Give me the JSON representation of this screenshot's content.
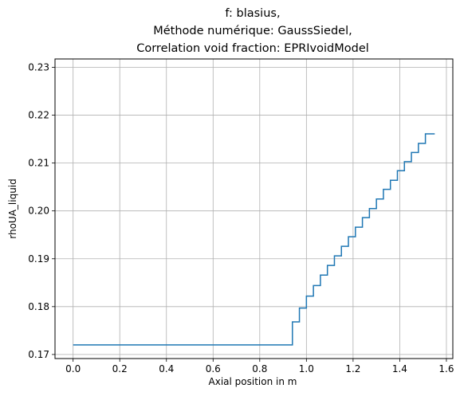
{
  "chart_data": {
    "type": "line",
    "title_lines": [
      "f: blasius,",
      "Méthode numérique: GaussSiedel,",
      "Correlation void fraction: EPRIvoidModel"
    ],
    "xlabel": "Axial position in m",
    "ylabel": "rhoUA_liquid",
    "xlim": [
      -0.0775,
      1.6275
    ],
    "ylim": [
      0.16915,
      0.23175
    ],
    "x_ticks": [
      0.0,
      0.2,
      0.4,
      0.6,
      0.8,
      1.0,
      1.2,
      1.4,
      1.6
    ],
    "x_tick_labels": [
      "0.0",
      "0.2",
      "0.4",
      "0.6",
      "0.8",
      "1.0",
      "1.2",
      "1.4",
      "1.6"
    ],
    "y_ticks": [
      0.17,
      0.18,
      0.19,
      0.2,
      0.21,
      0.22,
      0.23
    ],
    "y_tick_labels": [
      "0.17",
      "0.18",
      "0.19",
      "0.20",
      "0.21",
      "0.22",
      "0.23"
    ],
    "grid": true,
    "line_color": "#1f77b4",
    "drawstyle": "steps",
    "series": [
      {
        "x": [
          0.0,
          0.94,
          0.94,
          0.97,
          0.97,
          1.0,
          1.0,
          1.03,
          1.03,
          1.06,
          1.06,
          1.09,
          1.09,
          1.12,
          1.12,
          1.15,
          1.15,
          1.18,
          1.18,
          1.21,
          1.21,
          1.24,
          1.24,
          1.27,
          1.27,
          1.3,
          1.3,
          1.33,
          1.33,
          1.36,
          1.36,
          1.39,
          1.39,
          1.42,
          1.42,
          1.45,
          1.45,
          1.48,
          1.48,
          1.51,
          1.51,
          1.55
        ],
        "y": [
          0.172,
          0.172,
          0.1768,
          0.1768,
          0.1797,
          0.1797,
          0.1822,
          0.1822,
          0.1844,
          0.1844,
          0.1866,
          0.1866,
          0.1886,
          0.1886,
          0.1906,
          0.1906,
          0.1926,
          0.1926,
          0.1946,
          0.1946,
          0.1966,
          0.1966,
          0.1986,
          0.1986,
          0.2005,
          0.2005,
          0.2025,
          0.2025,
          0.2045,
          0.2045,
          0.2064,
          0.2064,
          0.2084,
          0.2084,
          0.2103,
          0.2103,
          0.2122,
          0.2122,
          0.2141,
          0.2141,
          0.2161,
          0.2161
        ]
      }
    ]
  }
}
